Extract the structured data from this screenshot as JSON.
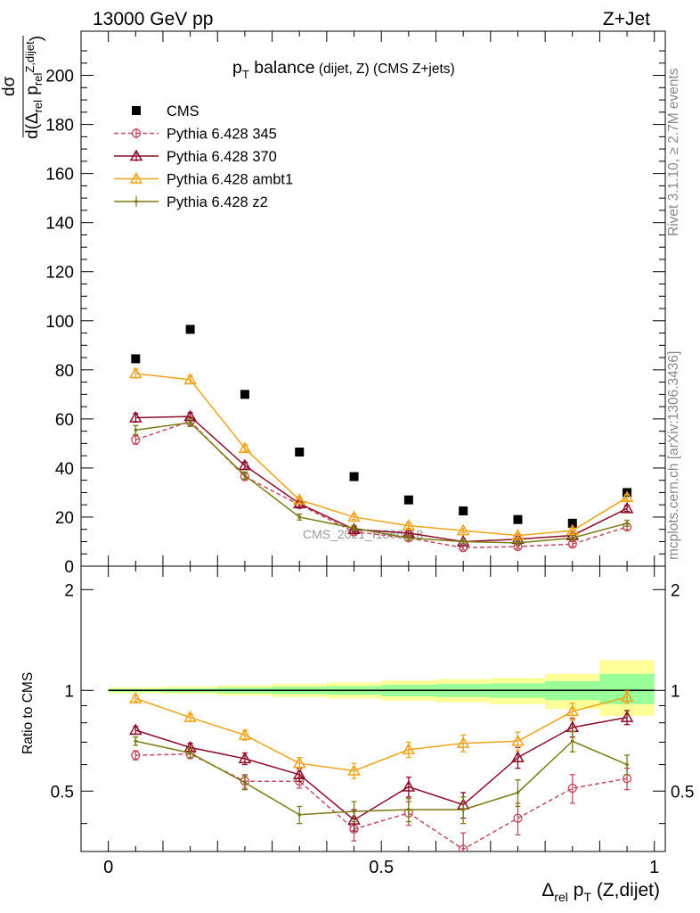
{
  "header": {
    "left": "13000 GeV pp",
    "right": "Z+Jet"
  },
  "side_labels": {
    "rivet": "Rivet 3.1.10, ≥ 2.7M events",
    "mcplots": "mcplots.cern.ch [arXiv:1306.3436]"
  },
  "watermark": "CMS_2021_I1866118",
  "chart_data": [
    {
      "type": "scatter",
      "panel": "main",
      "title": {
        "main": "p",
        "main_sub": "T",
        "main_rest": " balance",
        "small": " (dijet, Z) (CMS Z+jets)"
      },
      "ylabel": {
        "numerator": "dσ",
        "denominator_prefix": "d(Δ",
        "denominator_sub": "rel",
        "denominator_mid": " p",
        "denominator_sup": "Z,dijet",
        "denominator_suffix": ")"
      },
      "xlim": [
        -0.05,
        1.02
      ],
      "ylim": [
        0,
        218
      ],
      "yticks": [
        0,
        20,
        40,
        60,
        80,
        100,
        120,
        140,
        160,
        180,
        200
      ],
      "ytick_labels": [
        "0",
        "20",
        "40",
        "60",
        "80",
        "100",
        "120",
        "140",
        "160",
        "180",
        "200"
      ],
      "x": [
        0.05,
        0.15,
        0.25,
        0.35,
        0.45,
        0.55,
        0.65,
        0.75,
        0.85,
        0.95
      ],
      "series": [
        {
          "name": "CMS",
          "color": "#000000",
          "marker": "square",
          "values": [
            84.5,
            96.5,
            70.0,
            46.5,
            36.5,
            27.0,
            22.5,
            19.0,
            17.5,
            30.0
          ]
        },
        {
          "name": "Pythia 6.428 345",
          "color": "#c0505f",
          "marker": "circle-open",
          "dashed": true,
          "values": [
            51.5,
            59.0,
            36.5,
            25.0,
            14.0,
            11.5,
            7.5,
            8.0,
            9.0,
            16.0
          ],
          "errors": [
            1.8,
            1.6,
            1.4,
            1.2,
            1.0,
            1.0,
            0.9,
            0.9,
            1.0,
            1.2
          ]
        },
        {
          "name": "Pythia 6.428 370",
          "color": "#8b0d2a",
          "marker": "triangle-open",
          "values": [
            60.5,
            61.0,
            41.0,
            25.5,
            15.0,
            13.5,
            10.0,
            11.0,
            12.5,
            23.5
          ],
          "errors": [
            1.8,
            1.6,
            1.4,
            1.2,
            1.0,
            1.0,
            0.9,
            0.9,
            1.0,
            1.2
          ]
        },
        {
          "name": "Pythia 6.428 ambt1",
          "color": "#f0a31a",
          "marker": "triangle-open",
          "values": [
            78.5,
            76.0,
            48.0,
            27.0,
            20.0,
            16.5,
            14.5,
            12.5,
            14.5,
            28.0
          ],
          "errors": [
            1.8,
            1.6,
            1.4,
            1.2,
            1.0,
            1.0,
            0.9,
            0.9,
            1.0,
            1.2
          ]
        },
        {
          "name": "Pythia 6.428 z2",
          "color": "#7c7a12",
          "marker": "dot",
          "values": [
            55.5,
            58.5,
            37.0,
            20.0,
            15.5,
            11.5,
            10.0,
            9.5,
            11.5,
            17.5
          ],
          "errors": [
            1.8,
            1.6,
            1.4,
            1.2,
            1.0,
            1.0,
            0.9,
            0.9,
            1.0,
            1.2
          ]
        }
      ]
    },
    {
      "type": "scatter",
      "panel": "ratio",
      "ylabel": "Ratio to CMS",
      "xlabel": {
        "prefix": "Δ",
        "sub": "rel",
        "mid": " p",
        "sub2": "T",
        "suffix": " (Z,dijet)"
      },
      "xlim": [
        -0.05,
        1.02
      ],
      "ylim": [
        0.33,
        2.35
      ],
      "scale": "log",
      "yticks": [
        0.5,
        1,
        2
      ],
      "ytick_labels": [
        "0.5",
        "1",
        "2"
      ],
      "xticks": [
        0,
        0.5,
        1
      ],
      "xtick_labels": [
        "0",
        "0.5",
        "1"
      ],
      "bins": [
        0.0,
        0.1,
        0.2,
        0.3,
        0.4,
        0.5,
        0.6,
        0.7,
        0.8,
        0.9,
        1.0
      ],
      "band_yellow": [
        [
          0.98,
          1.02
        ],
        [
          0.975,
          1.025
        ],
        [
          0.965,
          1.035
        ],
        [
          0.955,
          1.045
        ],
        [
          0.945,
          1.055
        ],
        [
          0.93,
          1.07
        ],
        [
          0.92,
          1.08
        ],
        [
          0.91,
          1.09
        ],
        [
          0.88,
          1.12
        ],
        [
          0.84,
          1.23
        ]
      ],
      "band_green": [
        [
          0.99,
          1.01
        ],
        [
          0.987,
          1.013
        ],
        [
          0.98,
          1.02
        ],
        [
          0.975,
          1.025
        ],
        [
          0.97,
          1.03
        ],
        [
          0.96,
          1.04
        ],
        [
          0.955,
          1.045
        ],
        [
          0.95,
          1.05
        ],
        [
          0.935,
          1.065
        ],
        [
          0.91,
          1.12
        ]
      ],
      "series": [
        {
          "name": "Pythia 6.428 345",
          "values": [
            0.64,
            0.645,
            0.535,
            0.535,
            0.385,
            0.43,
            0.335,
            0.415,
            0.51,
            0.545
          ],
          "errors": [
            0.02,
            0.02,
            0.025,
            0.025,
            0.03,
            0.035,
            0.04,
            0.045,
            0.05,
            0.04
          ]
        },
        {
          "name": "Pythia 6.428 370",
          "values": [
            0.76,
            0.675,
            0.625,
            0.56,
            0.41,
            0.515,
            0.455,
            0.63,
            0.775,
            0.83
          ],
          "errors": [
            0.02,
            0.02,
            0.025,
            0.025,
            0.03,
            0.035,
            0.04,
            0.045,
            0.05,
            0.04
          ]
        },
        {
          "name": "Pythia 6.428 ambt1",
          "values": [
            0.945,
            0.83,
            0.735,
            0.605,
            0.575,
            0.665,
            0.695,
            0.705,
            0.865,
            0.955
          ],
          "errors": [
            0.02,
            0.02,
            0.025,
            0.025,
            0.03,
            0.035,
            0.04,
            0.045,
            0.05,
            0.04
          ]
        },
        {
          "name": "Pythia 6.428 z2",
          "values": [
            0.705,
            0.65,
            0.53,
            0.425,
            0.435,
            0.44,
            0.44,
            0.495,
            0.705,
            0.6
          ],
          "errors": [
            0.02,
            0.02,
            0.025,
            0.025,
            0.03,
            0.035,
            0.04,
            0.045,
            0.05,
            0.04
          ]
        }
      ]
    }
  ]
}
